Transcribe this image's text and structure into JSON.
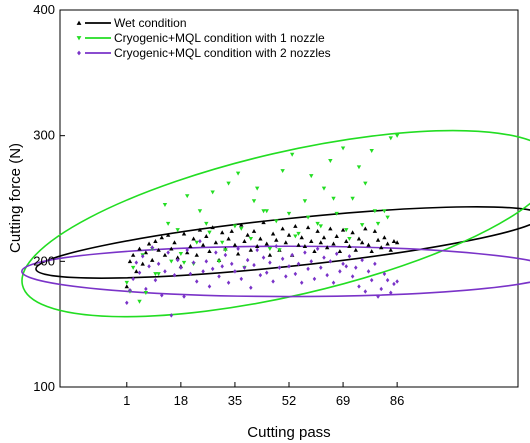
{
  "chart_data": {
    "type": "scatter",
    "title": "",
    "xlabel": "Cutting pass",
    "ylabel": "Cutting force (N)",
    "xlim": [
      -20,
      124
    ],
    "ylim": [
      100,
      400
    ],
    "x_ticks": [
      1,
      18,
      35,
      52,
      69,
      86
    ],
    "y_ticks": [
      100,
      200,
      300,
      400
    ],
    "grid": false,
    "legend_position": "top-left",
    "series": [
      {
        "name": "Wet condition",
        "marker": "triangle-up",
        "color": "#000000",
        "x": [
          1,
          2,
          3,
          4,
          5,
          6,
          7,
          8,
          9,
          10,
          11,
          12,
          13,
          14,
          15,
          16,
          17,
          18,
          19,
          20,
          21,
          22,
          23,
          24,
          25,
          26,
          27,
          28,
          29,
          30,
          31,
          32,
          33,
          34,
          35,
          36,
          37,
          38,
          39,
          40,
          41,
          42,
          43,
          44,
          45,
          46,
          47,
          48,
          49,
          50,
          51,
          52,
          53,
          54,
          55,
          56,
          57,
          58,
          59,
          60,
          61,
          62,
          63,
          64,
          65,
          66,
          67,
          68,
          69,
          70,
          71,
          72,
          73,
          74,
          75,
          76,
          77,
          78,
          79,
          80,
          81,
          82,
          83,
          84,
          85,
          86
        ],
        "y": [
          180,
          200,
          205,
          192,
          210,
          198,
          207,
          214,
          201,
          216,
          209,
          219,
          205,
          221,
          210,
          215,
          203,
          196,
          222,
          207,
          212,
          218,
          205,
          225,
          213,
          220,
          208,
          227,
          215,
          201,
          223,
          210,
          218,
          224,
          213,
          206,
          229,
          216,
          221,
          209,
          224,
          212,
          218,
          231,
          214,
          205,
          222,
          217,
          209,
          226,
          215,
          221,
          205,
          228,
          213,
          219,
          212,
          227,
          216,
          208,
          224,
          215,
          219,
          211,
          226,
          214,
          220,
          208,
          225,
          216,
          212,
          223,
          209,
          218,
          215,
          226,
          213,
          208,
          224,
          217,
          211,
          219,
          214,
          209,
          216,
          215
        ],
        "ellipse": {
          "cx": 52,
          "cy": 215,
          "rx": 80,
          "ry": 19,
          "angle_deg": -6
        }
      },
      {
        "name": "Cryogenic+MQL condition with 1 nozzle",
        "marker": "triangle-down",
        "color": "#22dd22",
        "x": [
          1,
          3,
          5,
          7,
          9,
          11,
          13,
          15,
          17,
          18,
          20,
          22,
          24,
          26,
          28,
          30,
          31,
          33,
          35,
          36,
          38,
          40,
          42,
          44,
          46,
          48,
          50,
          52,
          53,
          55,
          57,
          59,
          61,
          63,
          65,
          67,
          69,
          70,
          72,
          74,
          76,
          78,
          80,
          82,
          84,
          86,
          2,
          6,
          10,
          14,
          19,
          23,
          27,
          32,
          37,
          41,
          45,
          49,
          54,
          58,
          62,
          66,
          71,
          75,
          79,
          83
        ],
        "y": [
          183,
          195,
          168,
          175,
          210,
          190,
          245,
          200,
          225,
          206,
          252,
          198,
          240,
          230,
          255,
          200,
          215,
          262,
          228,
          270,
          195,
          218,
          258,
          240,
          210,
          232,
          272,
          238,
          285,
          222,
          248,
          268,
          230,
          258,
          280,
          238,
          290,
          225,
          250,
          275,
          262,
          288,
          230,
          240,
          298,
          300,
          176,
          205,
          190,
          230,
          199,
          215,
          223,
          209,
          226,
          248,
          240,
          209,
          220,
          235,
          228,
          250,
          218,
          229,
          240,
          235
        ],
        "ellipse": {
          "cx": 52,
          "cy": 230,
          "rx": 86,
          "ry": 57,
          "angle_deg": -13
        }
      },
      {
        "name": "Cryogenic+MQL condition with 2 nozzles",
        "marker": "diamond",
        "color": "#7a33c8",
        "x": [
          1,
          2,
          3,
          4,
          5,
          6,
          7,
          8,
          9,
          10,
          11,
          12,
          13,
          14,
          15,
          16,
          17,
          18,
          19,
          20,
          21,
          22,
          23,
          24,
          25,
          26,
          27,
          28,
          29,
          30,
          31,
          32,
          33,
          34,
          35,
          36,
          37,
          38,
          39,
          40,
          41,
          42,
          43,
          44,
          45,
          46,
          47,
          48,
          49,
          50,
          51,
          52,
          53,
          54,
          55,
          56,
          57,
          58,
          59,
          60,
          61,
          62,
          63,
          64,
          65,
          66,
          67,
          68,
          69,
          70,
          71,
          72,
          73,
          74,
          75,
          76,
          77,
          78,
          79,
          80,
          81,
          82,
          83,
          84,
          85,
          86
        ],
        "y": [
          167,
          177,
          186,
          199,
          191,
          204,
          178,
          196,
          211,
          185,
          198,
          173,
          192,
          207,
          157,
          189,
          201,
          195,
          172,
          209,
          190,
          199,
          184,
          216,
          192,
          200,
          180,
          194,
          207,
          188,
          196,
          205,
          183,
          198,
          192,
          210,
          186,
          195,
          201,
          179,
          197,
          209,
          189,
          203,
          191,
          199,
          184,
          212,
          195,
          202,
          188,
          196,
          205,
          190,
          198,
          183,
          207,
          194,
          200,
          186,
          210,
          195,
          203,
          189,
          200,
          183,
          206,
          192,
          198,
          196,
          204,
          188,
          195,
          180,
          201,
          176,
          192,
          185,
          198,
          172,
          178,
          190,
          185,
          175,
          182,
          184
        ],
        "ellipse": {
          "cx": 52,
          "cy": 192,
          "rx": 84,
          "ry": 20,
          "angle_deg": 0
        }
      }
    ]
  }
}
